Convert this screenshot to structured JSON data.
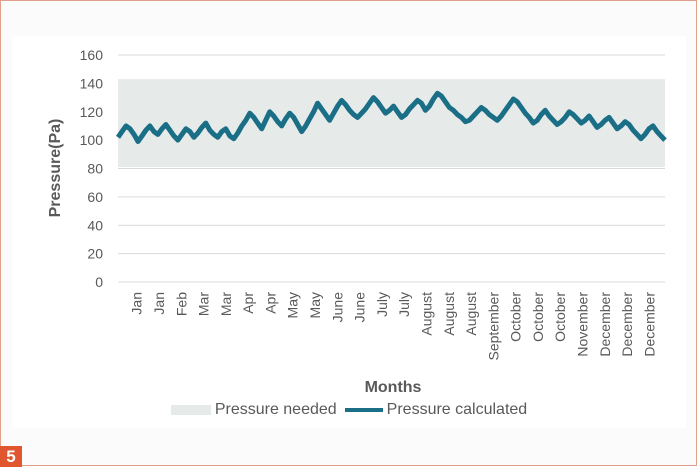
{
  "figure_label": "5",
  "chart_data": {
    "type": "line",
    "title": "",
    "xlabel": "Months",
    "ylabel": "Pressure(Pa)",
    "ylim": [
      0,
      160
    ],
    "yticks": [
      0,
      20,
      40,
      60,
      80,
      100,
      120,
      140,
      160
    ],
    "grid": true,
    "legend_position": "bottom",
    "x_tick_labels": [
      "Jan",
      "Jan",
      "Feb",
      "Mar",
      "Mar",
      "Apr",
      "Apr",
      "May",
      "May",
      "June",
      "June",
      "July",
      "July",
      "August",
      "August",
      "August",
      "September",
      "October",
      "October",
      "October",
      "November",
      "December",
      "December",
      "December"
    ],
    "series": [
      {
        "name": "Pressure needed",
        "kind": "band",
        "color": "#e6ebea",
        "lower": 81,
        "upper": 143
      },
      {
        "name": "Pressure calculated",
        "kind": "line",
        "color": "#1a6e86",
        "values": [
          102,
          106,
          110,
          108,
          104,
          99,
          103,
          107,
          110,
          106,
          104,
          108,
          111,
          107,
          103,
          100,
          104,
          108,
          106,
          102,
          105,
          109,
          112,
          107,
          104,
          102,
          106,
          108,
          103,
          101,
          105,
          110,
          114,
          119,
          116,
          112,
          108,
          114,
          120,
          117,
          113,
          110,
          115,
          119,
          116,
          111,
          106,
          110,
          115,
          120,
          126,
          122,
          118,
          114,
          119,
          124,
          128,
          125,
          121,
          118,
          116,
          119,
          122,
          126,
          130,
          127,
          123,
          119,
          121,
          124,
          120,
          116,
          118,
          122,
          125,
          128,
          126,
          121,
          124,
          129,
          133,
          131,
          127,
          123,
          121,
          118,
          116,
          113,
          114,
          117,
          120,
          123,
          121,
          118,
          116,
          114,
          117,
          121,
          125,
          129,
          127,
          123,
          119,
          116,
          112,
          114,
          118,
          121,
          117,
          114,
          111,
          113,
          116,
          120,
          118,
          115,
          112,
          114,
          117,
          113,
          109,
          111,
          114,
          116,
          112,
          108,
          110,
          113,
          111,
          107,
          104,
          101,
          104,
          108,
          110,
          106,
          103,
          100
        ]
      }
    ]
  }
}
